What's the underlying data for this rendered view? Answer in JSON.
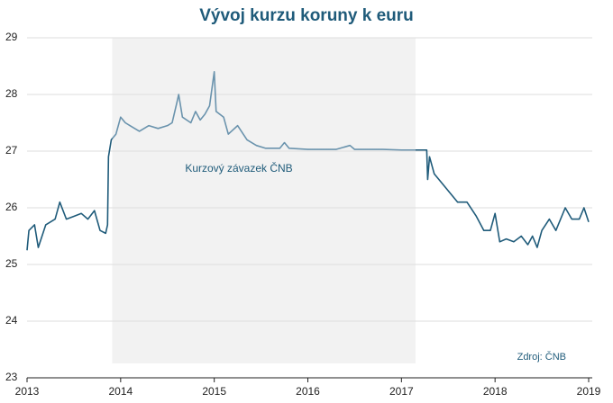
{
  "chart_data": {
    "type": "line",
    "title": "Vývoj kurzu koruny k euru",
    "source": "Zdroj:  ČNB",
    "x": [
      2013.0,
      2013.02,
      2013.08,
      2013.12,
      2013.2,
      2013.3,
      2013.35,
      2013.42,
      2013.5,
      2013.58,
      2013.65,
      2013.72,
      2013.78,
      2013.84,
      2013.86,
      2013.87,
      2013.9,
      2013.95,
      2014.0,
      2014.05,
      2014.1,
      2014.2,
      2014.3,
      2014.4,
      2014.5,
      2014.55,
      2014.6,
      2014.62,
      2014.66,
      2014.75,
      2014.8,
      2014.85,
      2014.9,
      2014.95,
      2015.0,
      2015.02,
      2015.1,
      2015.15,
      2015.25,
      2015.35,
      2015.45,
      2015.55,
      2015.7,
      2015.75,
      2015.8,
      2016.0,
      2016.3,
      2016.45,
      2016.5,
      2016.8,
      2017.0,
      2017.27,
      2017.28,
      2017.3,
      2017.35,
      2017.4,
      2017.5,
      2017.6,
      2017.7,
      2017.8,
      2017.88,
      2017.95,
      2018.0,
      2018.05,
      2018.12,
      2018.2,
      2018.28,
      2018.35,
      2018.4,
      2018.45,
      2018.5,
      2018.58,
      2018.65,
      2018.75,
      2018.82,
      2018.9,
      2018.95,
      2019.0
    ],
    "values": [
      25.25,
      25.6,
      25.7,
      25.3,
      25.7,
      25.8,
      26.1,
      25.8,
      25.85,
      25.9,
      25.8,
      25.95,
      25.6,
      25.55,
      25.7,
      26.9,
      27.2,
      27.3,
      27.6,
      27.5,
      27.45,
      27.35,
      27.45,
      27.4,
      27.45,
      27.5,
      27.85,
      28.0,
      27.6,
      27.5,
      27.7,
      27.55,
      27.65,
      27.8,
      28.4,
      27.7,
      27.6,
      27.3,
      27.45,
      27.2,
      27.1,
      27.05,
      27.05,
      27.15,
      27.05,
      27.03,
      27.03,
      27.1,
      27.03,
      27.03,
      27.02,
      27.02,
      26.5,
      26.9,
      26.6,
      26.5,
      26.3,
      26.1,
      26.1,
      25.85,
      25.6,
      25.6,
      25.9,
      25.4,
      25.45,
      25.4,
      25.5,
      25.35,
      25.5,
      25.3,
      25.6,
      25.8,
      25.6,
      26.0,
      25.8,
      25.8,
      26.0,
      25.75
    ],
    "color": "#1f5b7a",
    "highlight": {
      "xlim": [
        2013.91,
        2017.15
      ],
      "label": "Kurzový závazek ČNB",
      "color": "#6a93ad"
    },
    "xlim": [
      2013,
      2019
    ],
    "xticks": [
      2013,
      2014,
      2015,
      2016,
      2017,
      2018,
      2019
    ],
    "ylim": [
      23,
      29
    ],
    "yticks": [
      23,
      24,
      25,
      26,
      27,
      28,
      29
    ],
    "grid": true
  }
}
